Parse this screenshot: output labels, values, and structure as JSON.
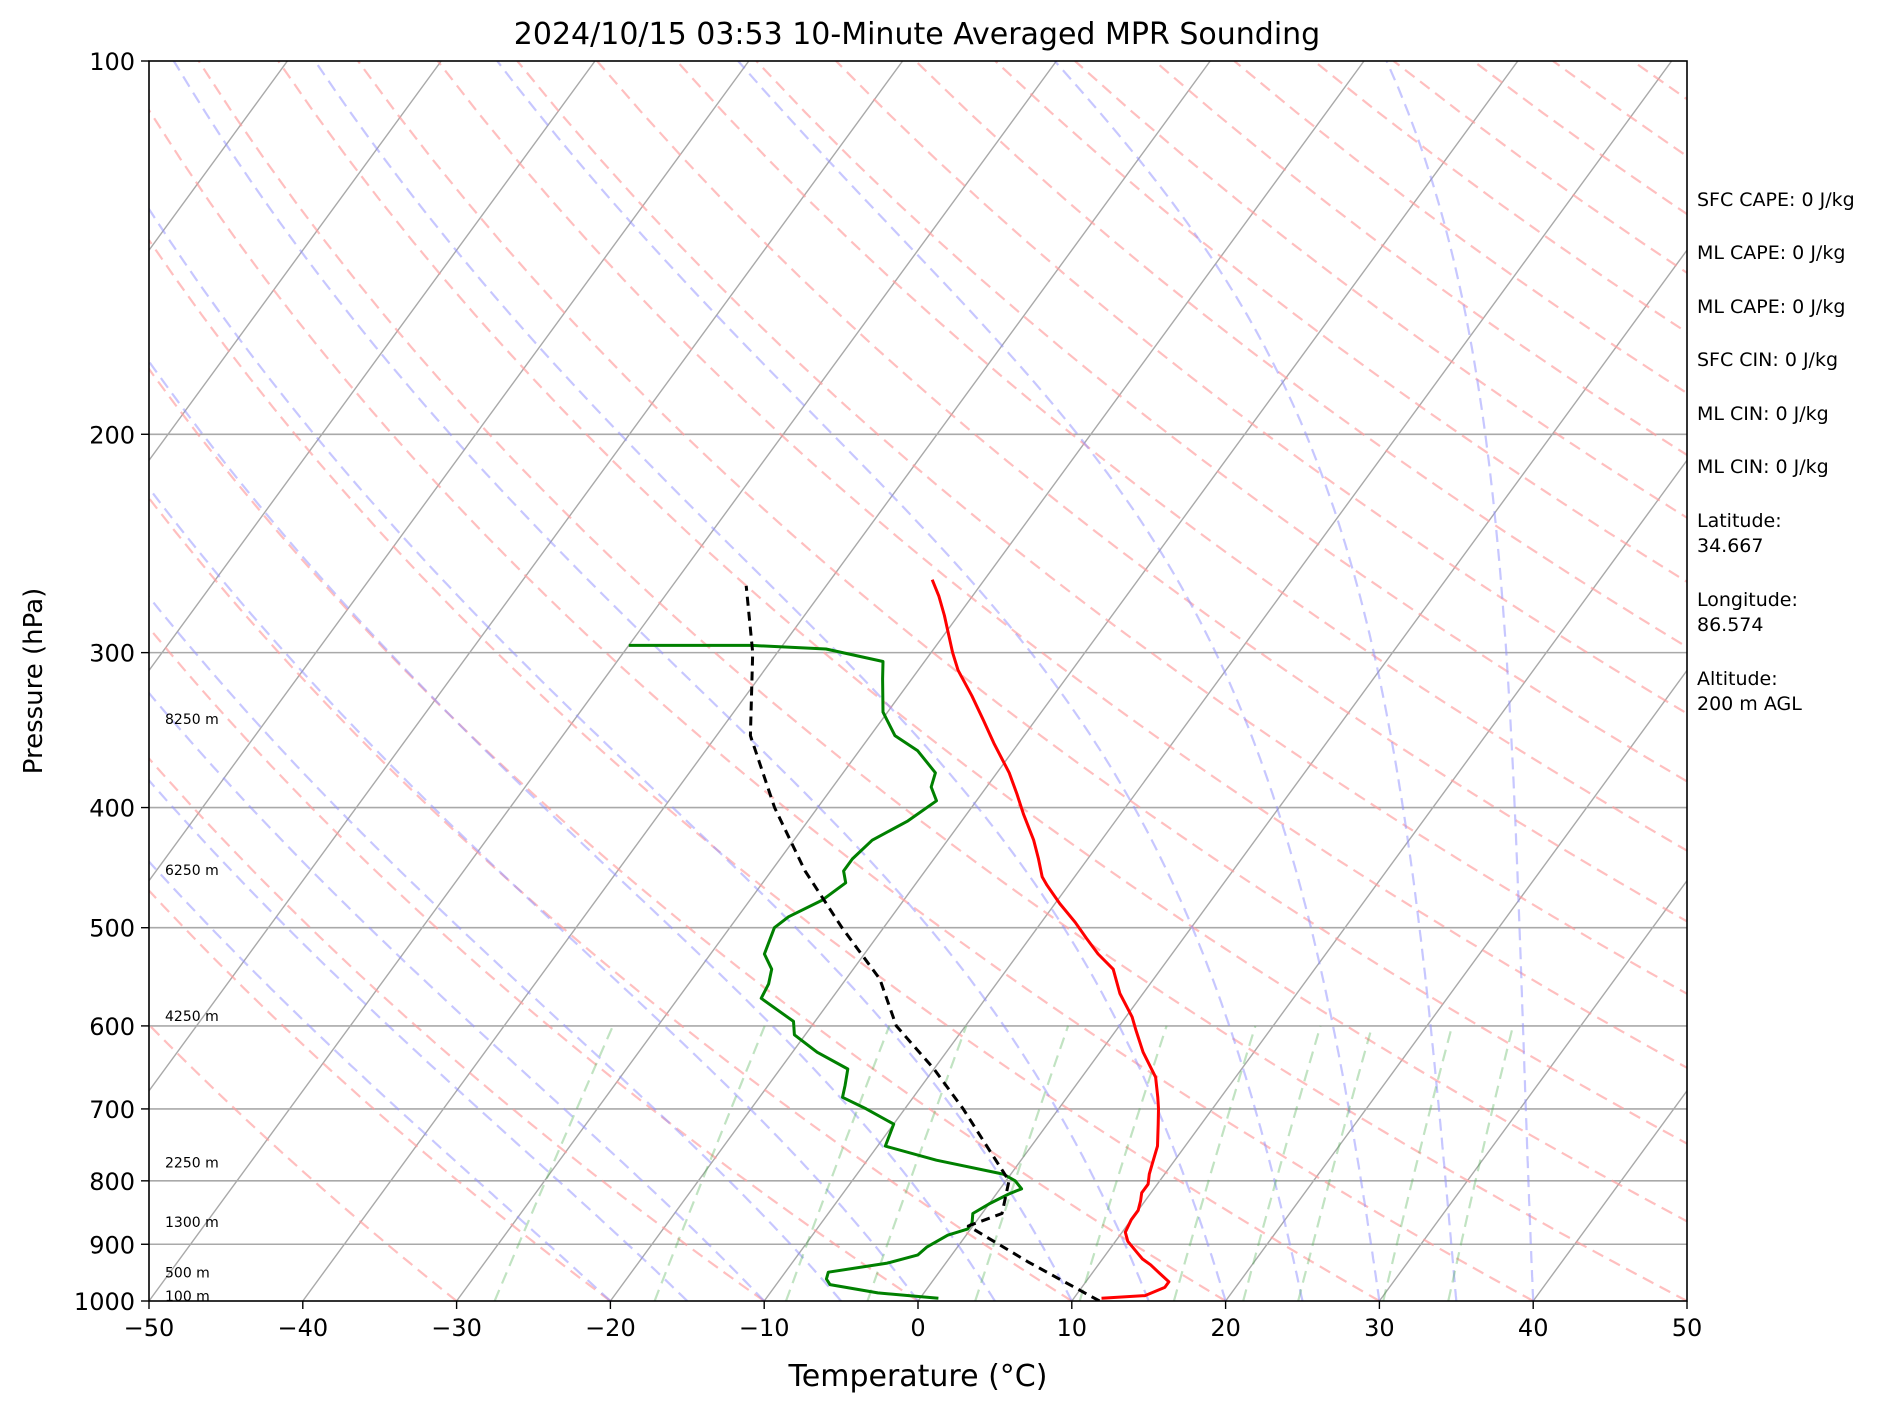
{
  "chart_data": {
    "type": "line",
    "title": "2024/10/15 03:53 10-Minute Averaged MPR Sounding",
    "xlabel": "Temperature (°C)",
    "ylabel": "Pressure (hPa)",
    "xlim": [
      -50,
      50
    ],
    "ylim": [
      1000,
      100
    ],
    "y_scale": "log",
    "x_ticks": [
      "−50",
      "−40",
      "−30",
      "−20",
      "−10",
      "0",
      "10",
      "20",
      "30",
      "40",
      "50"
    ],
    "y_ticks": [
      "100",
      "200",
      "300",
      "400",
      "500",
      "600",
      "700",
      "800",
      "900",
      "1000"
    ],
    "height_labels": [
      {
        "text": "8250 m",
        "p": 340
      },
      {
        "text": "6250 m",
        "p": 450
      },
      {
        "text": "4250 m",
        "p": 590
      },
      {
        "text": "2250 m",
        "p": 775
      },
      {
        "text": "1300 m",
        "p": 865
      },
      {
        "text": "500 m",
        "p": 950
      },
      {
        "text": "100 m",
        "p": 993
      }
    ],
    "series": [
      {
        "kind": "temperature",
        "color": "#ff0000",
        "points": [
          [
            11.8,
            995
          ],
          [
            14.5,
            990
          ],
          [
            15.4,
            975
          ],
          [
            15.4,
            965
          ],
          [
            14.4,
            950
          ],
          [
            13.4,
            935
          ],
          [
            12.6,
            925
          ],
          [
            12.0,
            915
          ],
          [
            10.8,
            895
          ],
          [
            10.2,
            880
          ],
          [
            10.0,
            860
          ],
          [
            10.0,
            845
          ],
          [
            9.7,
            830
          ],
          [
            9.4,
            818
          ],
          [
            9.4,
            805
          ],
          [
            9.0,
            790
          ],
          [
            8.7,
            775
          ],
          [
            8.2,
            750
          ],
          [
            7.2,
            720
          ],
          [
            6.5,
            700
          ],
          [
            5.9,
            685
          ],
          [
            4.8,
            660
          ],
          [
            2.8,
            630
          ],
          [
            1.3,
            605
          ],
          [
            0.4,
            590
          ],
          [
            -1.5,
            565
          ],
          [
            -3.1,
            540
          ],
          [
            -4.8,
            525
          ],
          [
            -6.3,
            510
          ],
          [
            -7.8,
            495
          ],
          [
            -9.7,
            478
          ],
          [
            -11.4,
            462
          ],
          [
            -12.1,
            455
          ],
          [
            -13.2,
            440
          ],
          [
            -14.4,
            425
          ],
          [
            -16.3,
            405
          ],
          [
            -17.7,
            390
          ],
          [
            -19.2,
            375
          ],
          [
            -21.6,
            355
          ],
          [
            -23.4,
            340
          ],
          [
            -25.3,
            325
          ],
          [
            -27.4,
            310
          ],
          [
            -28.6,
            300
          ],
          [
            -29.5,
            292
          ],
          [
            -30.9,
            280
          ],
          [
            -32.2,
            270
          ],
          [
            -33.4,
            262
          ]
        ]
      },
      {
        "kind": "dewpoint",
        "color": "#008000",
        "points": [
          [
            1.2,
            995
          ],
          [
            -3.0,
            985
          ],
          [
            -6.5,
            970
          ],
          [
            -7.0,
            960
          ],
          [
            -7.2,
            948
          ],
          [
            -3.8,
            932
          ],
          [
            -2.2,
            918
          ],
          [
            -2.0,
            905
          ],
          [
            -1.2,
            885
          ],
          [
            -0.2,
            875
          ],
          [
            -0.2,
            865
          ],
          [
            -0.6,
            850
          ],
          [
            0.0,
            835
          ],
          [
            0.8,
            820
          ],
          [
            1.4,
            812
          ],
          [
            0.6,
            800
          ],
          [
            -0.5,
            790
          ],
          [
            -5.5,
            770
          ],
          [
            -9.5,
            750
          ],
          [
            -10.0,
            720
          ],
          [
            -12.5,
            700
          ],
          [
            -14.6,
            685
          ],
          [
            -15.0,
            670
          ],
          [
            -15.6,
            650
          ],
          [
            -18.4,
            630
          ],
          [
            -20.7,
            610
          ],
          [
            -21.4,
            595
          ],
          [
            -24.6,
            570
          ],
          [
            -24.8,
            555
          ],
          [
            -25.3,
            540
          ],
          [
            -26.5,
            525
          ],
          [
            -27.1,
            500
          ],
          [
            -26.7,
            490
          ],
          [
            -25.3,
            475
          ],
          [
            -24.6,
            460
          ],
          [
            -25.3,
            450
          ],
          [
            -25.3,
            440
          ],
          [
            -24.9,
            425
          ],
          [
            -23.5,
            410
          ],
          [
            -22.6,
            395
          ],
          [
            -23.6,
            385
          ],
          [
            -24.0,
            375
          ],
          [
            -26.2,
            360
          ],
          [
            -28.4,
            350
          ],
          [
            -30.3,
            335
          ],
          [
            -31.9,
            315
          ],
          [
            -32.7,
            305
          ],
          [
            -37.0,
            298
          ],
          [
            -42.0,
            296
          ],
          [
            -50.0,
            296
          ]
        ]
      },
      {
        "kind": "parcel",
        "color": "#000000",
        "points": [
          [
            11.8,
            1000
          ],
          [
            5.3,
            930
          ],
          [
            -0.3,
            870
          ],
          [
            1.3,
            850
          ],
          [
            0.2,
            800
          ],
          [
            -2.9,
            750
          ],
          [
            -6.2,
            700
          ],
          [
            -10.0,
            650
          ],
          [
            -14.5,
            600
          ],
          [
            -17.8,
            550
          ],
          [
            -22.7,
            500
          ],
          [
            -27.8,
            450
          ],
          [
            -32.8,
            400
          ],
          [
            -37.8,
            350
          ],
          [
            -41.6,
            300
          ],
          [
            -45.2,
            265
          ]
        ]
      }
    ]
  },
  "stats": [
    {
      "label": "SFC CAPE: 0 J/kg"
    },
    {
      "label": "ML CAPE: 0 J/kg"
    },
    {
      "label": "ML CAPE: 0 J/kg"
    },
    {
      "label": "SFC CIN: 0 J/kg"
    },
    {
      "label": "ML CIN: 0 J/kg"
    },
    {
      "label": "ML CIN: 0 J/kg"
    },
    {
      "label": "Latitude:\n34.667"
    },
    {
      "label": "Longitude:\n86.574"
    },
    {
      "label": "Altitude:\n200 m AGL"
    }
  ]
}
